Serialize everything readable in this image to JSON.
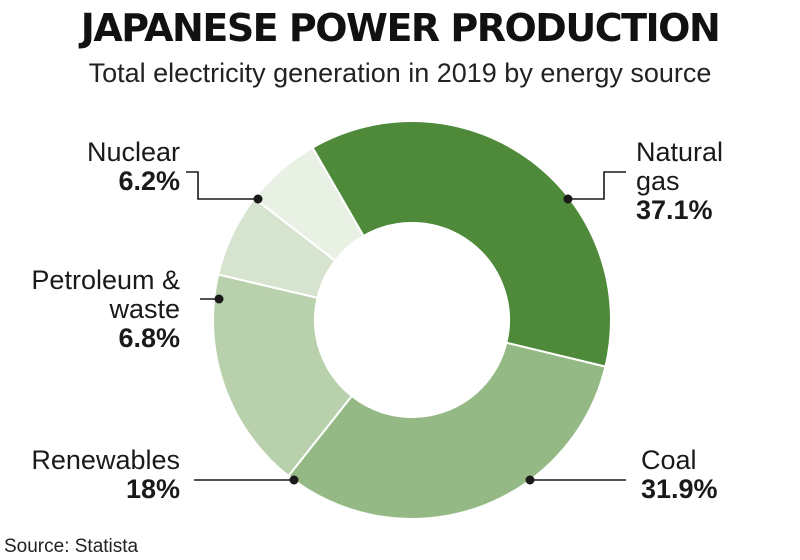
{
  "chart_data": {
    "type": "pie",
    "title": "JAPANESE POWER PRODUCTION",
    "subtitle": "Total electricity generation in 2019 by energy source",
    "slices": [
      {
        "label": "Natural gas",
        "label_lines": [
          "Natural",
          "gas"
        ],
        "value": 37.1,
        "value_label": "37.1%",
        "color": "#4e8a3a"
      },
      {
        "label": "Coal",
        "label_lines": [
          "Coal"
        ],
        "value": 31.9,
        "value_label": "31.9%",
        "color": "#95b985"
      },
      {
        "label": "Renewables",
        "label_lines": [
          "Renewables"
        ],
        "value": 18,
        "value_label": "18%",
        "color": "#b8d0ac"
      },
      {
        "label": "Petroleum & waste",
        "label_lines": [
          "Petroleum &",
          "waste"
        ],
        "value": 6.8,
        "value_label": "6.8%",
        "color": "#d6e4cf"
      },
      {
        "label": "Nuclear",
        "label_lines": [
          "Nuclear"
        ],
        "value": 6.2,
        "value_label": "6.2%",
        "color": "#e9f1e5"
      }
    ],
    "donut": true,
    "start_angle_deg": -30,
    "direction": "clockwise",
    "source": "Source: Statista"
  }
}
